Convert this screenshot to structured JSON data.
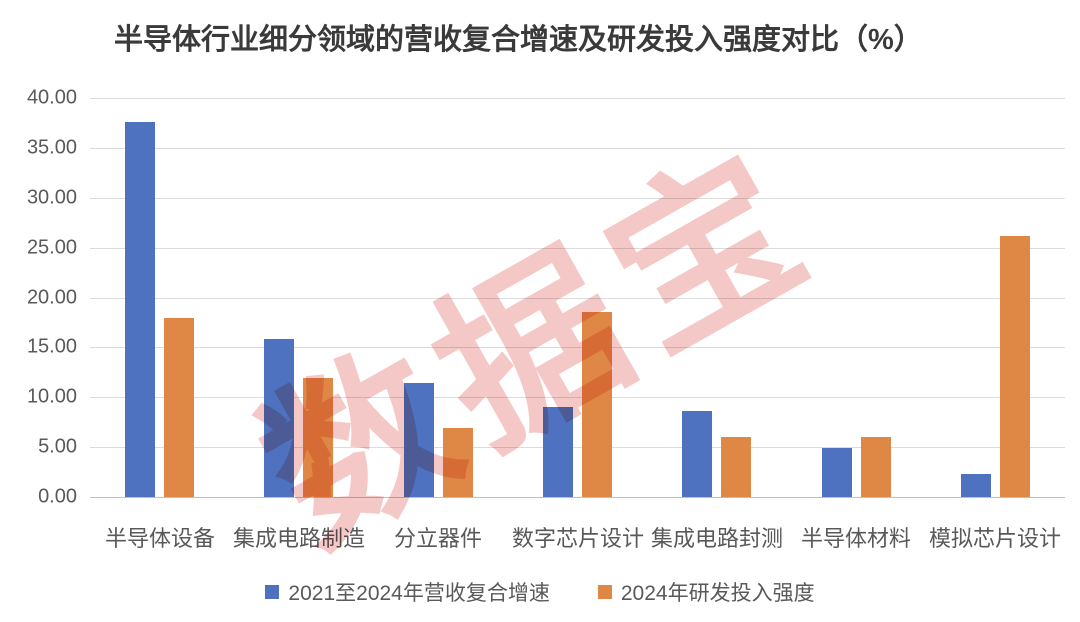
{
  "title": "半导体行业细分领域的营收复合增速及研发投入强度对比（%）",
  "watermark": "数据宝",
  "chart_data": {
    "type": "bar",
    "title": "半导体行业细分领域的营收复合增速及研发投入强度对比（%）",
    "categories": [
      "半导体设备",
      "集成电路制造",
      "分立器件",
      "数字芯片设计",
      "集成电路封测",
      "半导体材料",
      "模拟芯片设计"
    ],
    "series": [
      {
        "name": "2021至2024年营收复合增速",
        "color": "#4f72c0",
        "values": [
          37.6,
          15.8,
          11.4,
          9.0,
          8.6,
          4.9,
          2.3
        ]
      },
      {
        "name": "2024年研发投入强度",
        "color": "#df8845",
        "values": [
          17.9,
          11.9,
          6.9,
          18.5,
          6.0,
          6.0,
          26.2
        ]
      }
    ],
    "xlabel": "",
    "ylabel": "",
    "ylim": [
      0,
      40
    ],
    "ytick_step": 5,
    "ytick_labels": [
      "0.00",
      "5.00",
      "10.00",
      "15.00",
      "20.00",
      "25.00",
      "30.00",
      "35.00",
      "40.00"
    ],
    "grid": true,
    "legend_position": "bottom",
    "watermark_text": "数据宝"
  }
}
